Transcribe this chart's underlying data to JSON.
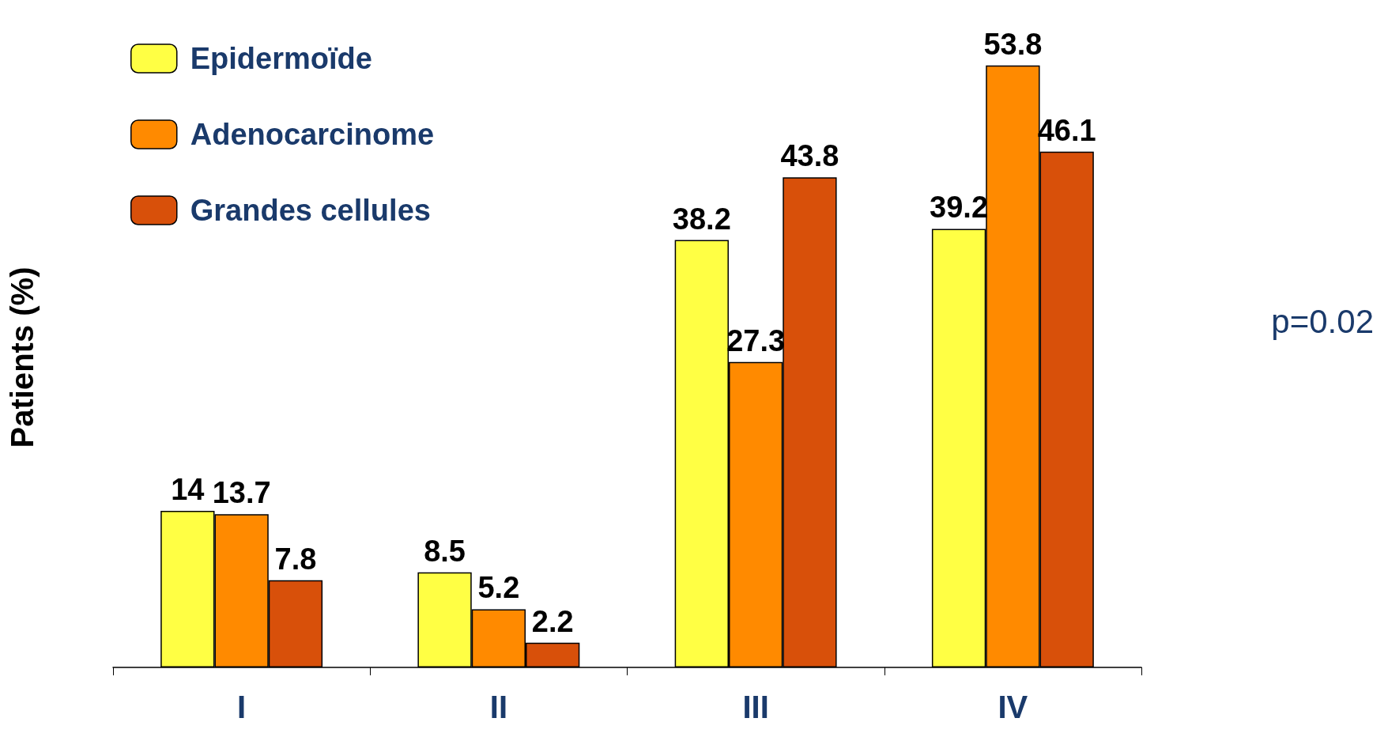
{
  "chart_data": {
    "type": "bar",
    "ylabel": "Patients (%)",
    "categories": [
      "I",
      "II",
      "III",
      "IV"
    ],
    "series": [
      {
        "name": "Epidermoïde",
        "color": "#ffff44",
        "values": [
          14,
          8.5,
          38.2,
          39.2
        ]
      },
      {
        "name": "Adenocarcinome",
        "color": "#ff8a00",
        "values": [
          13.7,
          5.2,
          27.3,
          53.8
        ]
      },
      {
        "name": "Grandes cellules",
        "color": "#d8500a",
        "values": [
          7.8,
          2.2,
          43.8,
          46.1
        ]
      }
    ],
    "data_labels": true,
    "relative": false,
    "legend": "top left",
    "grid": false,
    "annotations": [
      "p=0.02"
    ]
  }
}
